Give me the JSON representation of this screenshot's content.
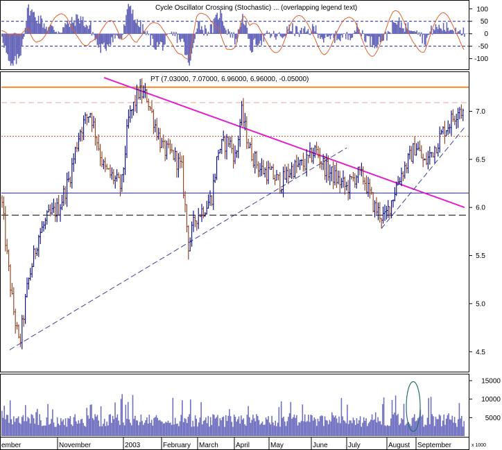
{
  "chart_data": [
    {
      "panel": "cycle-oscillator",
      "type": "bar",
      "title": "Cycle Oscillator Crossing (Stochastic) ... (overlapping legend text)",
      "yticks": [
        100,
        50,
        0,
        -50,
        -100
      ],
      "ylim": [
        -140,
        130
      ],
      "reference_lines": [
        50,
        -50
      ],
      "series": [
        {
          "kind": "histogram",
          "color": "#6666bb"
        },
        {
          "kind": "line",
          "color": "#e0602a"
        }
      ]
    },
    {
      "panel": "price",
      "type": "line",
      "title": "PT (7.03000, 7.07000, 6.96000, 6.96000, -0.05000)",
      "ohlc_last": {
        "open": 7.03,
        "high": 7.07,
        "low": 6.96,
        "close": 6.96,
        "change": -0.05
      },
      "yticks": [
        "7.0",
        "6.5",
        "6.0",
        "5.5",
        "5.0",
        "4.5"
      ],
      "ylim": [
        4.3,
        7.4
      ],
      "x_labels": [
        "ember",
        "November",
        "2003",
        "February",
        "March",
        "April",
        "May",
        "June",
        "July",
        "August",
        "September"
      ],
      "horizontal_levels": [
        {
          "value": 7.25,
          "color": "#f08a30",
          "style": "solid"
        },
        {
          "value": 7.09,
          "color": "#f0a0a0",
          "style": "dashed"
        },
        {
          "value": 6.74,
          "color": "#d06040",
          "style": "dotted"
        },
        {
          "value": 6.15,
          "color": "#2020c0",
          "style": "solid"
        },
        {
          "value": 5.92,
          "color": "#000000",
          "style": "dashed"
        }
      ],
      "trendlines": [
        {
          "from": [
            "start",
            7.35
          ],
          "to": [
            "end",
            6.0
          ],
          "color": "#e020d0"
        },
        {
          "from": [
            "start",
            4.52
          ],
          "to": [
            "June",
            6.62
          ],
          "color": "#4040a0"
        }
      ],
      "up_color": "#000080",
      "down_color": "#8b3a1a"
    },
    {
      "panel": "volume",
      "type": "bar",
      "yticks": [
        "15000",
        "10000",
        "5000"
      ],
      "ylim": [
        0,
        16500
      ],
      "multiplier_label": "x 1000",
      "bar_color": "#7070c0",
      "annotation": {
        "shape": "ellipse",
        "near": "August",
        "color": "#207070"
      }
    }
  ]
}
